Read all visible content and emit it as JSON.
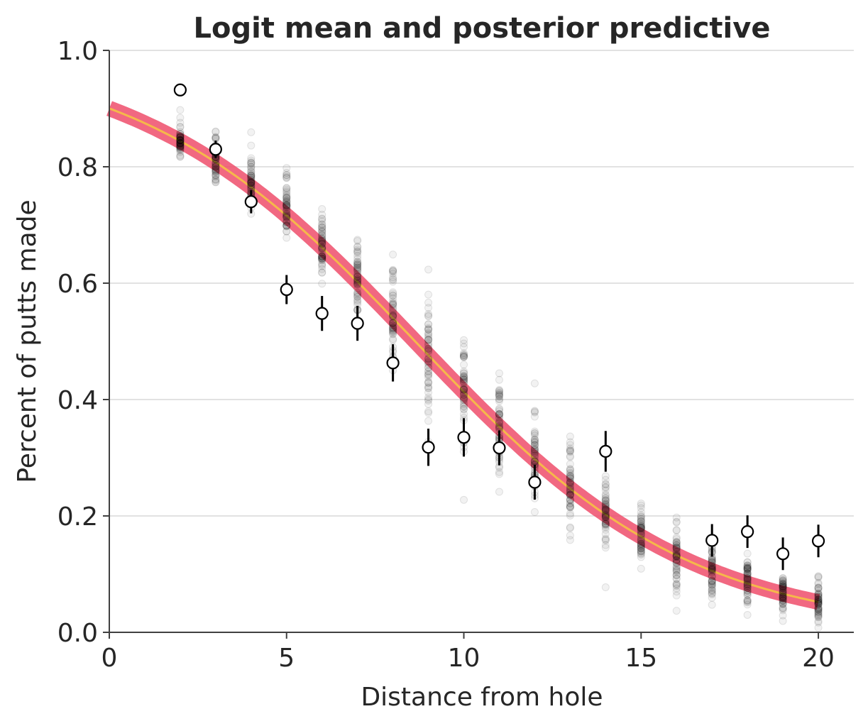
{
  "chart_data": {
    "type": "scatter",
    "title": "Logit mean and posterior predictive",
    "xlabel": "Distance from hole",
    "ylabel": "Percent of putts made",
    "xlim": [
      0,
      21
    ],
    "ylim": [
      0,
      1
    ],
    "xticks": [
      0,
      5,
      10,
      15,
      20
    ],
    "yticks": [
      0.0,
      0.2,
      0.4,
      0.6,
      0.8,
      1.0
    ],
    "xtick_labels": [
      "0",
      "5",
      "10",
      "15",
      "20"
    ],
    "ytick_labels": [
      "0.0",
      "0.2",
      "0.4",
      "0.6",
      "0.8",
      "1.0"
    ],
    "grid": "horizontal",
    "logit_mean": {
      "intercept": 2.2,
      "slope": -0.255,
      "band_color": "#ee4e6b",
      "line_color": "#f5b84a"
    },
    "posterior_predictive": {
      "x": [
        2,
        3,
        4,
        5,
        6,
        7,
        8,
        9,
        10,
        11,
        12,
        13,
        14,
        15,
        16,
        17,
        18,
        19,
        20
      ],
      "center": [
        0.845,
        0.81,
        0.77,
        0.725,
        0.67,
        0.61,
        0.55,
        0.485,
        0.42,
        0.36,
        0.3,
        0.25,
        0.205,
        0.165,
        0.13,
        0.105,
        0.085,
        0.068,
        0.055
      ],
      "spread": [
        0.03,
        0.05,
        0.06,
        0.07,
        0.07,
        0.08,
        0.09,
        0.1,
        0.1,
        0.1,
        0.09,
        0.085,
        0.07,
        0.07,
        0.065,
        0.06,
        0.05,
        0.045,
        0.04
      ],
      "color": "#000000"
    },
    "observed": {
      "x": [
        2,
        3,
        4,
        5,
        6,
        7,
        8,
        9,
        10,
        11,
        12,
        14,
        17,
        18,
        19,
        20
      ],
      "y": [
        0.932,
        0.83,
        0.74,
        0.589,
        0.548,
        0.531,
        0.463,
        0.318,
        0.335,
        0.317,
        0.258,
        0.311,
        0.158,
        0.173,
        0.135,
        0.157
      ],
      "err": [
        0.005,
        0.015,
        0.02,
        0.025,
        0.03,
        0.03,
        0.032,
        0.032,
        0.033,
        0.03,
        0.03,
        0.035,
        0.028,
        0.028,
        0.028,
        0.028
      ]
    }
  }
}
